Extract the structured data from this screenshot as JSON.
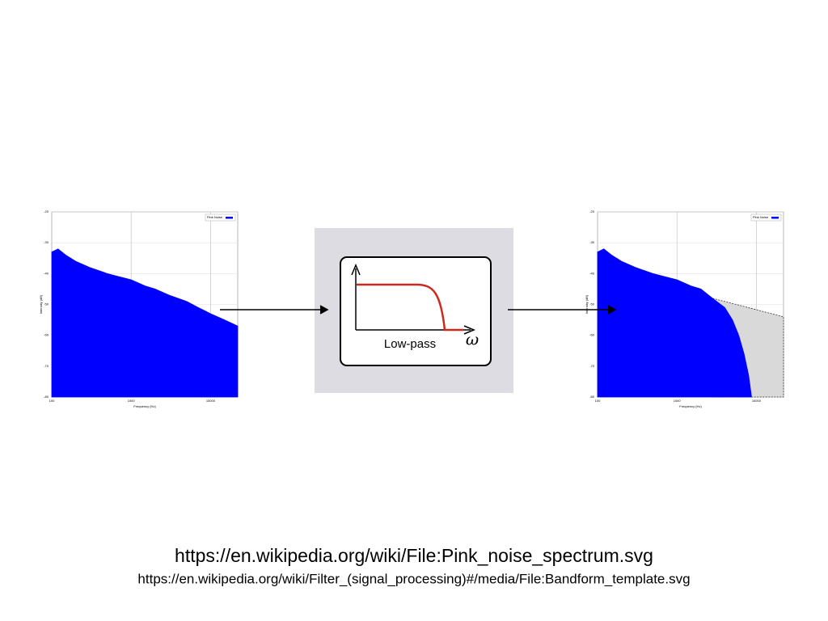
{
  "chart_data": [
    {
      "type": "area",
      "xlog": true,
      "grid": true,
      "legend": "upper right",
      "xlabel": "Frequency (Hz)",
      "ylabel": "Intensity (dB)",
      "xlim": [
        100,
        22000
      ],
      "ylim": [
        -80,
        -20
      ],
      "xticks": [
        100,
        1000,
        10000
      ],
      "yticks": [
        -20,
        -30,
        -40,
        -50,
        -60,
        -70,
        -80
      ],
      "series": [
        {
          "name": "Pink Noise",
          "color": "#0000ff",
          "x": [
            100,
            120,
            150,
            200,
            300,
            500,
            700,
            1000,
            1500,
            2000,
            3000,
            5000,
            7000,
            10000,
            15000,
            22000
          ],
          "values": [
            -33,
            -32,
            -34,
            -36,
            -38,
            -40,
            -41,
            -42,
            -44,
            -45,
            -47,
            -49,
            -51,
            -53,
            -55,
            -57
          ]
        }
      ]
    },
    {
      "type": "area",
      "xlog": true,
      "grid": true,
      "legend": "upper right",
      "xlabel": "Frequency (Hz)",
      "ylabel": "Intensity (dB)",
      "xlim": [
        100,
        22000
      ],
      "ylim": [
        -80,
        -20
      ],
      "xticks": [
        100,
        1000,
        10000
      ],
      "yticks": [
        -20,
        -30,
        -40,
        -50,
        -60,
        -70,
        -80
      ],
      "series": [
        {
          "color": "#d9d9d9",
          "x": [
            2800,
            22000
          ],
          "values": [
            -48,
            -54
          ]
        },
        {
          "name": "Pink Noise",
          "color": "#0000ff",
          "x": [
            100,
            120,
            150,
            200,
            300,
            500,
            700,
            1000,
            1500,
            2000,
            2800,
            4000,
            5000,
            6000,
            7000,
            8000,
            8700
          ],
          "values": [
            -33,
            -32,
            -34,
            -36,
            -38,
            -40,
            -41,
            -42,
            -44,
            -45,
            -48,
            -51,
            -55,
            -60,
            -66,
            -73,
            -80
          ]
        }
      ]
    }
  ],
  "diagram": {
    "label": "Low-pass",
    "axis_symbol": "ω"
  },
  "footer": {
    "source_1": "https://en.wikipedia.org/wiki/File:Pink_noise_spectrum.svg",
    "source_2": "https://en.wikipedia.org/wiki/Filter_(signal_processing)#/media/File:Bandform_template.svg"
  }
}
